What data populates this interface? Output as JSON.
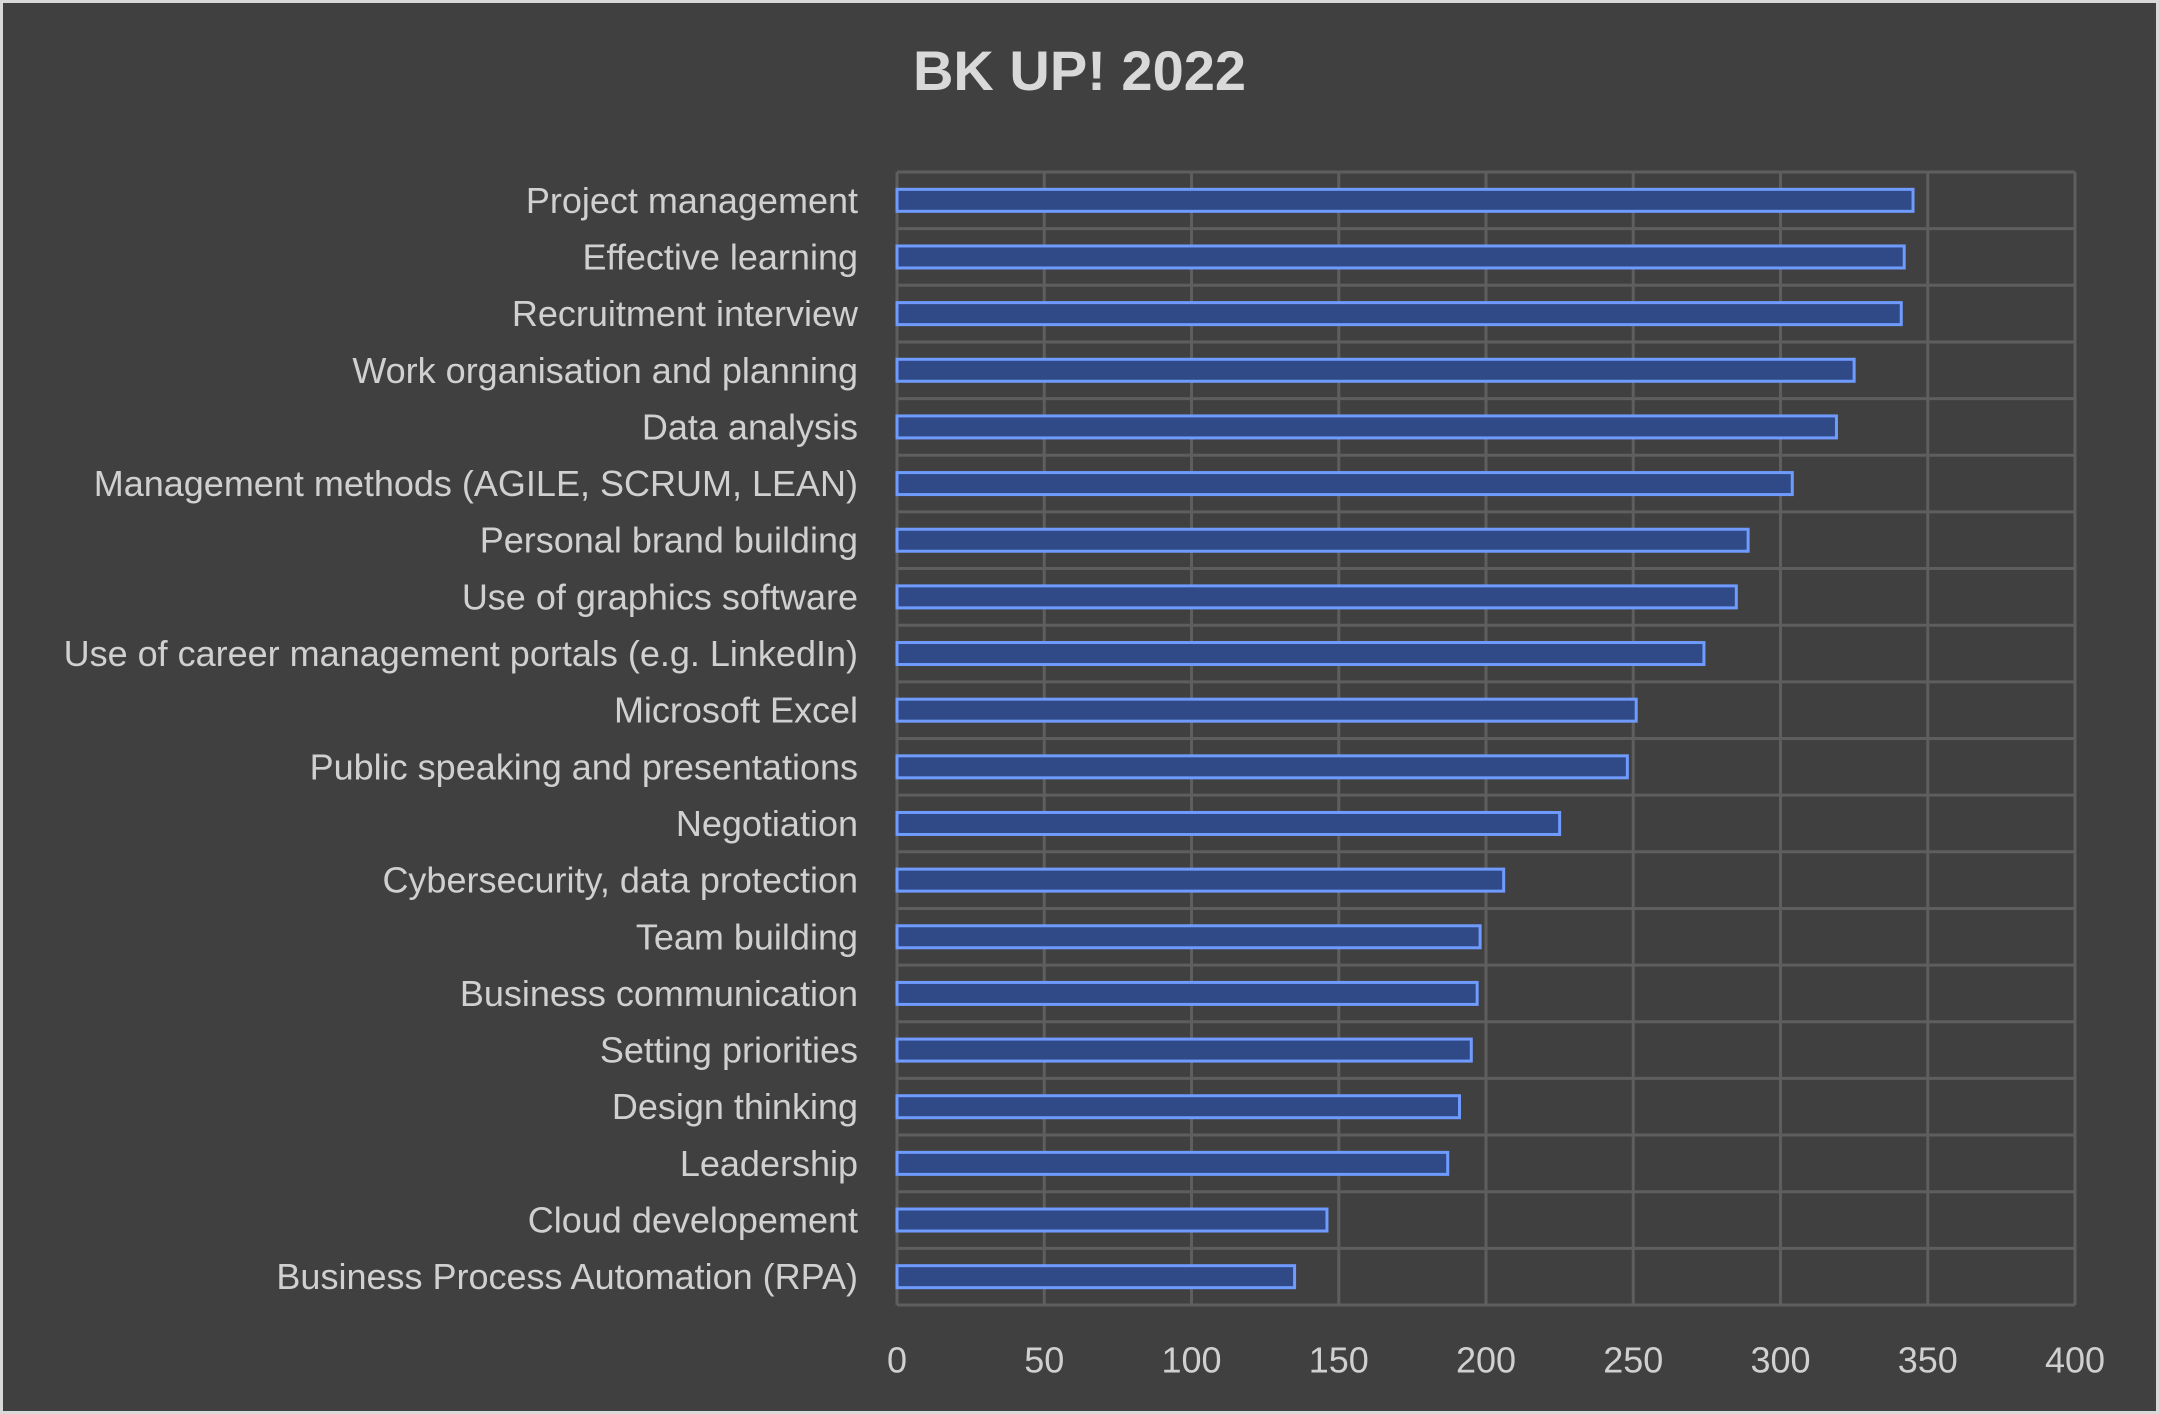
{
  "chart_data": {
    "type": "bar",
    "orientation": "horizontal",
    "title": "BK UP! 2022",
    "xlabel": "",
    "ylabel": "",
    "xlim": [
      0,
      400
    ],
    "x_ticks": [
      0,
      50,
      100,
      150,
      200,
      250,
      300,
      350,
      400
    ],
    "grid": true,
    "legend": "none",
    "categories": [
      "Project management",
      "Effective learning",
      "Recruitment interview",
      "Work organisation and planning",
      "Data analysis",
      "Management methods (AGILE, SCRUM, LEAN)",
      "Personal brand building",
      "Use of graphics software",
      "Use of career management portals (e.g. LinkedIn)",
      "Microsoft Excel",
      "Public speaking and presentations",
      "Negotiation",
      "Cybersecurity, data protection",
      "Team building",
      "Business communication",
      "Setting priorities",
      "Design thinking",
      "Leadership",
      "Cloud developement",
      "Business Process Automation (RPA)"
    ],
    "values": [
      345,
      342,
      341,
      325,
      319,
      304,
      289,
      285,
      274,
      251,
      248,
      225,
      206,
      198,
      197,
      195,
      191,
      187,
      146,
      135
    ],
    "bar_color": "#2f4a86",
    "bar_edge_color": "#6f9bff"
  }
}
